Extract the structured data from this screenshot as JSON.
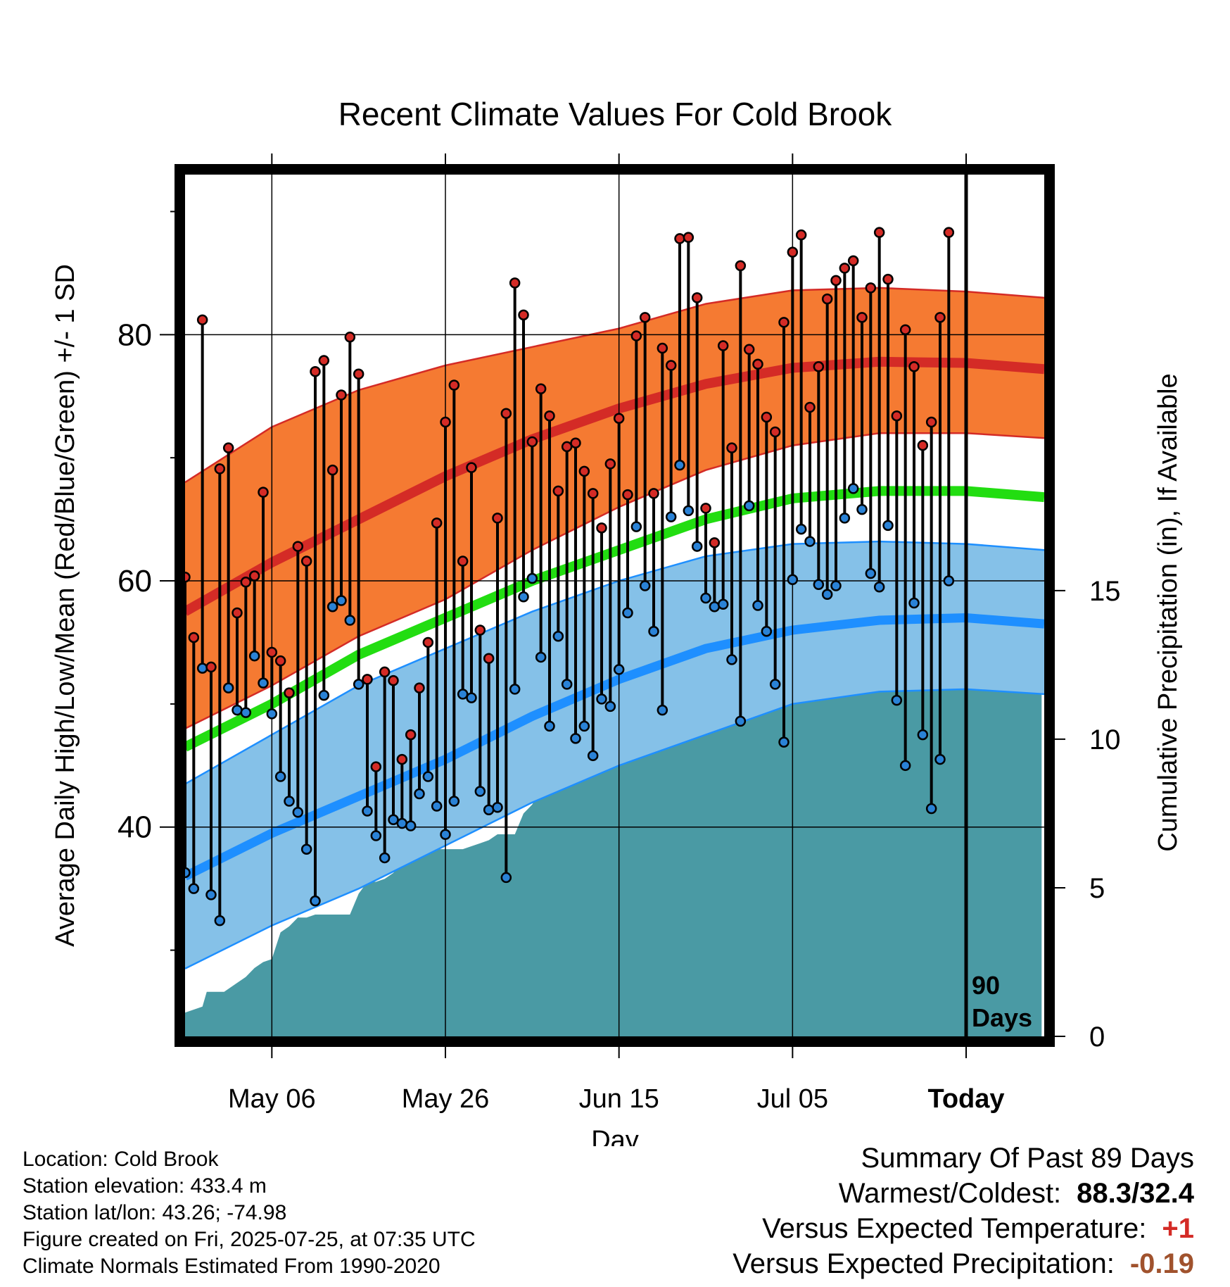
{
  "chart_data": {
    "type": "line",
    "title": "Recent Climate Values For Cold Brook",
    "xlabel": "Day",
    "ylabel": "Average Daily High/Low/Mean (Red/Blue/Green) +/- 1 SD",
    "y2label": "Cumulative Precipitation (in), If Available",
    "x_tick_labels": [
      "May 06",
      "May 26",
      "Jun 15",
      "Jul 05",
      "Today"
    ],
    "x_tick_days": [
      10,
      30,
      50,
      70,
      90
    ],
    "x_range_days": [
      0,
      99
    ],
    "y_range": [
      23,
      93
    ],
    "y_ticks": [
      40,
      60,
      80
    ],
    "y2_range": [
      0,
      29
    ],
    "y2_ticks": [
      0,
      5,
      10,
      15
    ],
    "today_marker": {
      "day": 90,
      "label_line1": "90",
      "label_line2": "Days"
    },
    "grid": true,
    "colors": {
      "high_band": "#f57a32",
      "high_mean": "#d42b26",
      "low_band": "#85c1e8",
      "low_mean": "#1e8fff",
      "overall_mean": "#22dd11",
      "precip": "#4a9aa4",
      "high_dot": "#d42b26",
      "low_dot": "#2a82d6"
    },
    "normals": {
      "days": [
        0,
        10,
        20,
        30,
        40,
        50,
        60,
        70,
        80,
        90,
        99
      ],
      "high_mean": [
        57.5,
        61.5,
        65.0,
        68.5,
        71.5,
        74.0,
        76.0,
        77.3,
        77.8,
        77.7,
        77.2
      ],
      "high_upper": [
        68.0,
        72.5,
        75.5,
        77.5,
        79.0,
        80.5,
        82.5,
        83.6,
        83.8,
        83.5,
        83.0
      ],
      "high_lower": [
        48.0,
        51.5,
        55.5,
        58.5,
        62.5,
        66.0,
        69.0,
        71.0,
        72.0,
        72.0,
        71.6
      ],
      "low_mean": [
        36.0,
        39.5,
        42.5,
        45.5,
        49.0,
        52.0,
        54.5,
        56.0,
        56.8,
        57.0,
        56.5
      ],
      "low_upper": [
        43.5,
        47.5,
        51.5,
        54.5,
        57.5,
        60.0,
        62.0,
        63.0,
        63.2,
        63.0,
        62.5
      ],
      "low_lower": [
        28.5,
        32.0,
        35.0,
        38.5,
        42.0,
        45.0,
        47.5,
        50.0,
        51.0,
        51.2,
        50.8
      ],
      "overall_mean": [
        46.5,
        50.0,
        54.0,
        57.0,
        60.0,
        62.5,
        65.0,
        66.7,
        67.3,
        67.3,
        66.8
      ]
    },
    "series": [
      {
        "name": "High",
        "values": [
          60.3,
          55.4,
          81.2,
          53.0,
          69.1,
          70.8,
          57.4,
          59.9,
          60.4,
          67.2,
          54.2,
          53.5,
          50.9,
          62.8,
          61.6,
          77.0,
          77.9,
          69.0,
          75.1,
          79.8,
          76.8,
          52.0,
          44.9,
          52.6,
          51.9,
          45.5,
          47.5,
          51.3,
          55.0,
          64.7,
          72.9,
          75.9,
          61.6,
          69.2,
          56.0,
          53.7,
          65.1,
          73.6,
          84.2,
          81.6,
          71.3,
          75.6,
          73.4,
          67.3,
          70.9,
          71.2,
          68.9,
          67.1,
          64.3,
          69.5,
          73.2,
          67.0,
          79.9,
          81.4,
          67.1,
          78.9,
          77.5,
          87.8,
          87.9,
          83.0,
          65.9,
          63.1,
          79.1,
          70.8,
          85.6,
          78.8,
          77.6,
          73.3,
          72.1,
          81.0,
          86.7,
          88.1,
          74.1,
          77.4,
          82.9,
          84.4,
          85.4,
          86.0,
          81.4,
          83.8,
          88.3,
          84.5,
          73.4,
          80.4,
          77.4,
          71.0,
          72.9,
          81.4,
          88.3
        ]
      },
      {
        "name": "Low",
        "values": [
          36.3,
          35.0,
          52.9,
          34.5,
          32.4,
          51.3,
          49.5,
          49.3,
          53.9,
          51.7,
          49.2,
          44.1,
          42.1,
          41.2,
          38.2,
          34.0,
          50.7,
          57.9,
          58.4,
          56.8,
          51.6,
          41.3,
          39.3,
          37.5,
          40.6,
          40.3,
          40.1,
          42.7,
          44.1,
          41.7,
          39.4,
          42.1,
          50.8,
          50.5,
          42.9,
          41.4,
          41.6,
          35.9,
          51.2,
          58.7,
          60.2,
          53.8,
          48.2,
          55.5,
          51.6,
          47.2,
          48.2,
          45.8,
          50.4,
          49.8,
          52.8,
          57.4,
          64.4,
          59.6,
          55.9,
          49.5,
          65.2,
          69.4,
          65.7,
          62.8,
          58.6,
          57.9,
          58.1,
          53.6,
          48.6,
          66.1,
          58.0,
          55.9,
          51.6,
          46.9,
          60.1,
          64.2,
          63.2,
          59.7,
          58.9,
          59.6,
          65.1,
          67.5,
          65.8,
          60.6,
          59.5,
          64.5,
          50.3,
          45.0,
          58.2,
          47.5,
          41.5,
          45.5,
          60.0
        ]
      },
      {
        "name": "Cumulative Precipitation",
        "days": [
          0,
          2,
          2.5,
          4.5,
          7,
          8,
          9,
          10,
          11,
          12,
          13,
          14,
          15,
          17,
          19,
          20,
          21,
          22,
          23,
          24,
          25,
          26,
          27,
          28,
          29,
          30,
          32,
          34,
          35,
          36,
          38,
          39,
          40,
          41,
          42,
          43,
          44,
          45,
          46,
          47,
          49,
          51,
          53,
          54,
          55,
          56,
          57,
          58,
          59,
          60,
          61,
          62,
          63,
          64,
          65,
          66,
          67,
          68,
          70,
          71,
          72,
          73,
          74,
          75,
          77,
          79,
          80,
          81,
          82,
          85,
          86,
          87,
          88,
          90,
          94,
          98.7
        ],
        "values": [
          0.8,
          1.0,
          1.5,
          1.5,
          2.0,
          2.3,
          2.5,
          2.6,
          3.5,
          3.7,
          4.0,
          4.0,
          4.1,
          4.1,
          4.1,
          4.8,
          5.2,
          5.2,
          5.3,
          5.5,
          5.9,
          6.1,
          6.2,
          6.2,
          6.3,
          6.3,
          6.3,
          6.5,
          6.6,
          6.8,
          6.8,
          7.5,
          7.8,
          8.3,
          9.4,
          9.6,
          9.6,
          9.7,
          9.7,
          9.7,
          9.8,
          9.8,
          9.9,
          10.2,
          10.5,
          10.6,
          10.6,
          10.7,
          10.7,
          10.9,
          11.0,
          11.1,
          11.1,
          11.2,
          11.2,
          11.2,
          11.2,
          11.3,
          11.3,
          11.3,
          11.4,
          11.4,
          11.4,
          11.4,
          11.5,
          12.0,
          12.0,
          12.1,
          12.2,
          12.2,
          12.3,
          12.4,
          12.5,
          12.5,
          12.5,
          12.5
        ]
      }
    ]
  },
  "info": {
    "location": "Location: Cold Brook",
    "elevation": "Station elevation: 433.4 m",
    "latlon": "Station lat/lon: 43.26; -74.98",
    "created": "Figure created on Fri, 2025-07-25, at 07:35 UTC",
    "normals": "Climate Normals Estimated From 1990-2020"
  },
  "summary": {
    "title": "Summary Of Past 89 Days",
    "warmest_label": "Warmest/Coldest:",
    "warmest_value": "88.3/32.4",
    "temp_label": "Versus Expected Temperature:",
    "temp_value": "+1",
    "temp_color": "#d42b26",
    "precip_label": "Versus Expected Precipitation:",
    "precip_value": "-0.19",
    "precip_color": "#a0522d"
  }
}
